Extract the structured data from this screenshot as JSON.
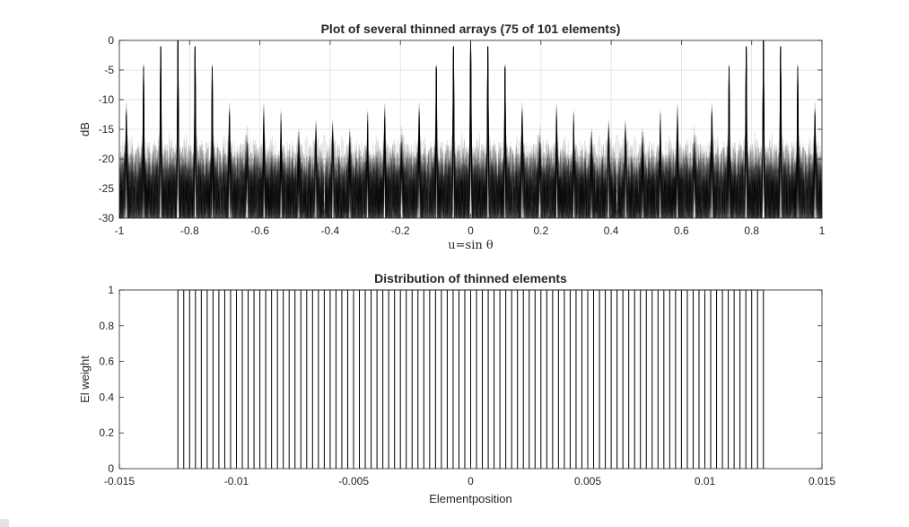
{
  "colors": {
    "background": "#ffffff",
    "axes": "#262626",
    "grid": "#dcdcdc",
    "pattern_line": "#000000",
    "mainlobe": "#000000"
  },
  "chart_data": [
    {
      "type": "line",
      "title": "Plot of several thinned arrays (75 of 101 elements)",
      "xlabel": "u=sin θ",
      "ylabel": "dB",
      "xlim": [
        -1,
        1
      ],
      "ylim": [
        -30,
        0
      ],
      "xticks": [
        -1,
        -0.8,
        -0.6,
        -0.4,
        -0.2,
        0,
        0.2,
        0.4,
        0.6,
        0.8,
        1
      ],
      "xtick_labels": [
        "-1",
        "-0.8",
        "-0.6",
        "-0.4",
        "-0.2",
        "0",
        "0.2",
        "0.4",
        "0.6",
        "0.8",
        "1"
      ],
      "yticks": [
        -30,
        -25,
        -20,
        -15,
        -10,
        -5,
        0
      ],
      "ytick_labels": [
        "-30",
        "-25",
        "-20",
        "-15",
        "-10",
        "-5",
        "0"
      ],
      "grid": true,
      "n_elements_total": 101,
      "n_elements_on": 75,
      "mainlobe": {
        "peak_u": 0,
        "peak_db": 0,
        "null_u": 0.02
      },
      "sidelobe_envelope_db": {
        "near_mainlobe_peak": -13,
        "typical_peak": -17,
        "floor": -30
      },
      "trace_opacity": 0.12
    },
    {
      "type": "bar",
      "title": "Distribution of thinned elements",
      "xlabel": "Elementposition",
      "ylabel": "El weight",
      "xlim": [
        -0.015,
        0.015
      ],
      "ylim": [
        0,
        1
      ],
      "xticks": [
        -0.015,
        -0.01,
        -0.005,
        0,
        0.005,
        0.01,
        0.015
      ],
      "xtick_labels": [
        "-0.015",
        "-0.01",
        "-0.005",
        "0",
        "0.005",
        "0.01",
        "0.015"
      ],
      "yticks": [
        0,
        0.2,
        0.4,
        0.6,
        0.8,
        1
      ],
      "ytick_labels": [
        "0",
        "0.2",
        "0.4",
        "0.6",
        "0.8",
        "1"
      ],
      "grid": false,
      "element_positions": {
        "start": -0.0125,
        "end": 0.0125,
        "count": 101
      },
      "weight": 1
    }
  ]
}
